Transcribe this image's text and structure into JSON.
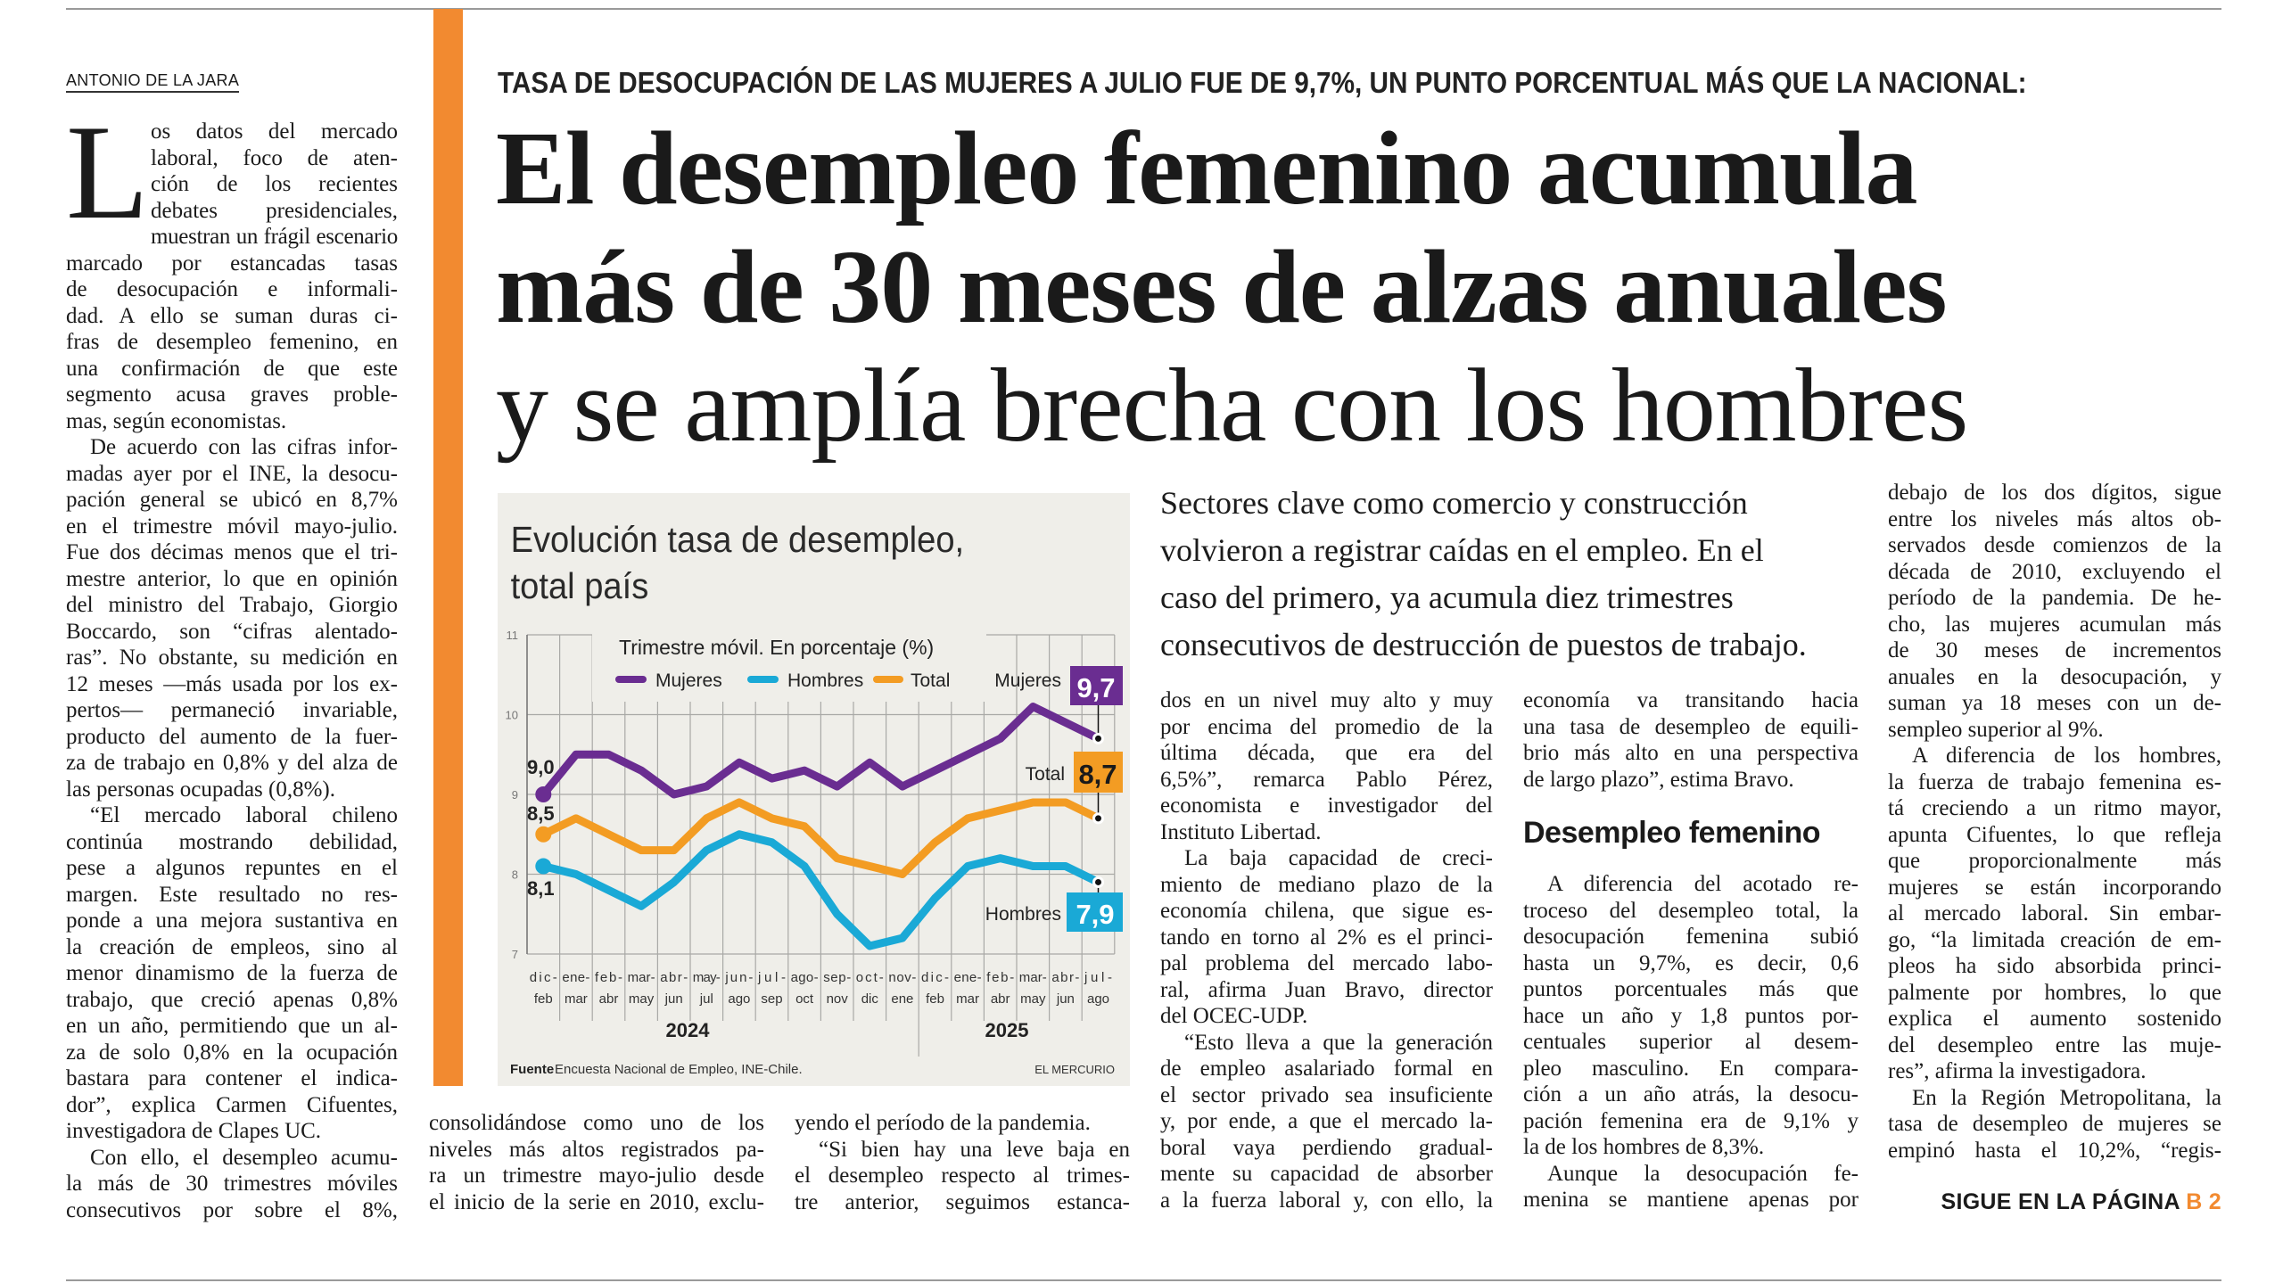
{
  "byline": "ANTONIO DE LA JARA",
  "kicker": "TASA DE DESOCUPACIÓN DE LAS MUJERES A JULIO FUE DE 9,7%, UN PUNTO PORCENTUAL MÁS QUE LA NACIONAL:",
  "headline": [
    "El desempleo femenino acumula",
    "más de 30 meses de alzas anuales",
    "y se amplía brecha con los hombres"
  ],
  "pull_quote": [
    "Sectores clave como comercio y construcción",
    "volvieron a registrar caídas en el empleo. En el",
    "caso del primero, ya acumula diez trimestres",
    "consecutivos de destrucción de puestos de trabajo."
  ],
  "drop_cap": "L",
  "columns": {
    "col1": {
      "starts_mid_paragraph": false,
      "paragraphs": [
        {
          "lines": [
            "os datos del mercado",
            "laboral, foco de aten-",
            "ción de los recientes",
            "debates presidenciales,",
            "muestran un frágil escenario",
            "marcado por estancadas tasas",
            "de desocupación e informali-",
            "dad. A ello se suman duras ci-",
            "fras de desempleo femenino, en",
            "una confirmación de que este",
            "segmento acusa graves proble-",
            "mas, según economistas."
          ]
        },
        {
          "lines": [
            "De acuerdo con las cifras infor-",
            "madas ayer por el INE, la desocu-",
            "pación general se ubicó en 8,7%",
            "en el trimestre móvil mayo-julio.",
            "Fue dos décimas menos que el tri-",
            "mestre anterior, lo que en opinión",
            "del ministro del Trabajo, Giorgio",
            "Boccardo, son “cifras alentado-",
            "ras”. No obstante, su medición en",
            "12 meses —más usada por los ex-",
            "pertos— permaneció invariable,",
            "producto del aumento de la fuer-",
            "za de trabajo en 0,8% y del alza de",
            "las personas ocupadas (0,8%)."
          ]
        },
        {
          "lines": [
            "“El mercado laboral chileno",
            "continúa mostrando debilidad,",
            "pese a algunos repuntes en el",
            "margen. Este resultado no res-",
            "ponde a una mejora sustantiva en",
            "la creación de empleos, sino al",
            "menor dinamismo de la fuerza de",
            "trabajo, que creció apenas 0,8%",
            "en un año, permitiendo que un al-",
            "za de solo 0,8% en la ocupación",
            "bastara para contener el indica-",
            "dor”, explica Carmen Cifuentes,",
            "investigadora de Clapes UC."
          ]
        },
        {
          "lines": [
            "Con ello, el desempleo acumu-",
            "la más de 30 trimestres móviles",
            "consecutivos por sobre el 8%,"
          ],
          "continues": true
        }
      ]
    },
    "col2": {
      "starts_mid_paragraph": true,
      "paragraphs": [
        {
          "lines": [
            "consolidándose como uno de los",
            "niveles más altos registrados pa-",
            "ra un trimestre mayo-julio desde",
            "el inicio de la serie en 2010, exclu-"
          ],
          "continues": true
        }
      ]
    },
    "col3": {
      "starts_mid_paragraph": true,
      "paragraphs": [
        {
          "lines": [
            "yendo el período de la pandemia."
          ]
        },
        {
          "lines": [
            "“Si bien hay una leve baja en",
            "el desempleo respecto al trimes-",
            "tre anterior, seguimos estanca-"
          ],
          "continues": true
        }
      ]
    },
    "col4": {
      "starts_mid_paragraph": true,
      "paragraphs": [
        {
          "lines": [
            "dos en un nivel muy alto y muy",
            "por encima del promedio de la",
            "última década, que era del",
            "6,5%”, remarca Pablo Pérez,",
            "economista e investigador del",
            "Instituto Libertad."
          ]
        },
        {
          "lines": [
            "La baja capacidad de creci-",
            "miento de mediano plazo de la",
            "economía chilena, que sigue es-",
            "tando en torno al 2% es el princi-",
            "pal problema del mercado labo-",
            "ral, afirma Juan Bravo, director",
            "del OCEC-UDP."
          ]
        },
        {
          "lines": [
            "“Esto lleva a que la generación",
            "de empleo asalariado formal en",
            "el sector privado sea insuficiente",
            "y, por ende, a que el mercado la-",
            "boral vaya perdiendo gradual-",
            "mente su capacidad de absorber",
            "a la fuerza laboral y, con ello, la"
          ],
          "continues": true
        }
      ]
    },
    "col5a": {
      "starts_mid_paragraph": true,
      "paragraphs": [
        {
          "lines": [
            "economía va transitando hacia",
            "una tasa de desempleo de equili-",
            "brio más alto en una perspectiva",
            "de largo plazo”, estima Bravo."
          ]
        }
      ]
    },
    "col5_subhead": "Desempleo femenino",
    "col5b": {
      "starts_mid_paragraph": false,
      "paragraphs": [
        {
          "lines": [
            "A diferencia del acotado re-",
            "troceso del desempleo total, la",
            "desocupación femenina subió",
            "hasta un 9,7%, es decir, 0,6",
            "puntos porcentuales más que",
            "hace un año y 1,8 puntos por-",
            "centuales superior al desem-",
            "pleo masculino. En compara-",
            "ción a un año atrás, la desocu-",
            "pación femenina era de 9,1% y",
            "la de los hombres de 8,3%."
          ]
        },
        {
          "lines": [
            "Aunque la desocupación fe-",
            "menina se mantiene apenas por"
          ],
          "continues": true
        }
      ]
    },
    "col6": {
      "starts_mid_paragraph": true,
      "paragraphs": [
        {
          "lines": [
            "debajo de los dos dígitos, sigue",
            "entre los niveles más altos ob-",
            "servados desde comienzos de la",
            "década de 2010, excluyendo el",
            "período de la pandemia. De he-",
            "cho, las mujeres acumulan más",
            "de 30 meses de incrementos",
            "anuales en la desocupación, y",
            "suman ya 18 meses con un de-",
            "sempleo superior al 9%."
          ]
        },
        {
          "lines": [
            "A diferencia de los hombres,",
            "la fuerza de trabajo femenina es-",
            "tá creciendo a un ritmo mayor,",
            "apunta Cifuentes, lo que refleja",
            "que proporcionalmente más",
            "mujeres se están incorporando",
            "al mercado laboral. Sin embar-",
            "go, “la limitada creación de em-",
            "pleos ha sido absorbida princi-",
            "palmente por hombres, lo que",
            "explica el aumento sostenido",
            "del desempleo entre las muje-",
            "res”, afirma la investigadora."
          ]
        },
        {
          "lines": [
            "En la Región Metropolitana, la",
            "tasa de desempleo de mujeres se",
            "empinó hasta el 10,2%, “regis-"
          ],
          "continues": true
        }
      ]
    }
  },
  "continuation": {
    "label": "SIGUE EN LA PÁGINA ",
    "page": "B 2"
  },
  "colors": {
    "accent_bar": "#f28a30",
    "mujeres": "#6a2d91",
    "hombres": "#1aa9d6",
    "total": "#f39c23",
    "chart_bg": "#efeee9"
  },
  "chart_data": {
    "type": "line",
    "title": [
      "Evolución tasa de desempleo,",
      "total país"
    ],
    "subtitle": "Trimestre móvil. En porcentaje (%)",
    "categories": [
      [
        "dic-",
        "feb"
      ],
      [
        "ene-",
        "mar"
      ],
      [
        "feb-",
        "abr"
      ],
      [
        "mar-",
        "may"
      ],
      [
        "abr-",
        "jun"
      ],
      [
        "may-",
        "jul"
      ],
      [
        "jun-",
        "ago"
      ],
      [
        "jul-",
        "sep"
      ],
      [
        "ago-",
        "oct"
      ],
      [
        "sep-",
        "nov"
      ],
      [
        "oct-",
        "dic"
      ],
      [
        "nov-",
        "ene"
      ],
      [
        "dic-",
        "feb"
      ],
      [
        "ene-",
        "mar"
      ],
      [
        "feb-",
        "abr"
      ],
      [
        "mar-",
        "may"
      ],
      [
        "abr-",
        "jun"
      ],
      [
        "jul-",
        "ago"
      ]
    ],
    "years": [
      {
        "label": "2024"
      },
      {
        "label": "2025"
      }
    ],
    "ylim": [
      7,
      11
    ],
    "yticks": [
      "11",
      "10",
      "9",
      "8",
      "7"
    ],
    "grid": true,
    "legend_placement": "top",
    "series": [
      {
        "name": "Mujeres",
        "key": "mujeres",
        "values": [
          9.0,
          9.5,
          9.5,
          9.3,
          9.0,
          9.1,
          9.4,
          9.2,
          9.3,
          9.1,
          9.4,
          9.1,
          9.3,
          9.5,
          9.7,
          10.1,
          9.9,
          9.7
        ],
        "start_label": "9,0",
        "end_label": "9,7"
      },
      {
        "name": "Hombres",
        "key": "hombres",
        "values": [
          8.1,
          8.0,
          7.8,
          7.6,
          7.9,
          8.3,
          8.5,
          8.4,
          8.1,
          7.5,
          7.1,
          7.2,
          7.7,
          8.1,
          8.2,
          8.1,
          8.1,
          7.9
        ],
        "start_label": "8,1",
        "end_label": "7,9"
      },
      {
        "name": "Total",
        "key": "total",
        "values": [
          8.5,
          8.7,
          8.5,
          8.3,
          8.3,
          8.7,
          8.9,
          8.7,
          8.6,
          8.2,
          8.1,
          8.0,
          8.4,
          8.7,
          8.8,
          8.9,
          8.9,
          8.7
        ],
        "start_label": "8,5",
        "end_label": "8,7"
      }
    ],
    "source_label": "Fuente",
    "source": "Encuesta Nacional de Empleo, INE-Chile.",
    "credit": "EL MERCURIO"
  }
}
